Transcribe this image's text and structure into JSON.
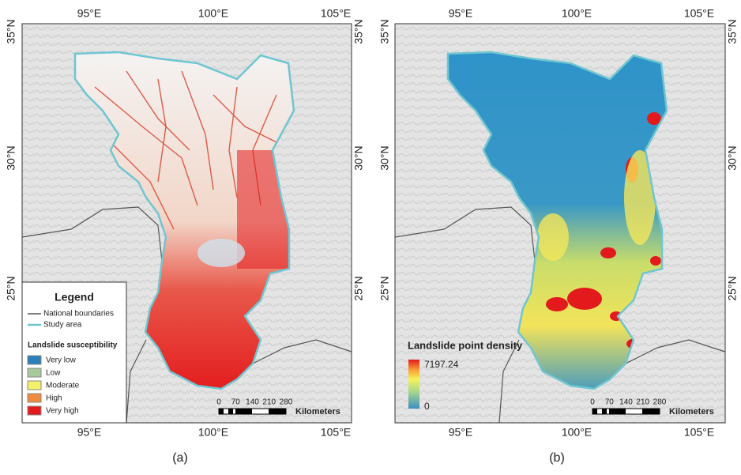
{
  "panels": [
    {
      "caption": "(a)",
      "lon_labels": [
        "95°E",
        "100°E",
        "105°E"
      ],
      "lat_labels": [
        "35°N",
        "30°N",
        "25°N"
      ],
      "legend": {
        "title": "Legend",
        "lines": [
          "National boundaries",
          "Study area"
        ],
        "subtitle": "Landslide susceptibility",
        "classes": [
          {
            "label": "Very low",
            "color": "#2c7fb8"
          },
          {
            "label": "Low",
            "color": "#a6c99b"
          },
          {
            "label": "Moderate",
            "color": "#f5f06a"
          },
          {
            "label": "High",
            "color": "#f08a3c"
          },
          {
            "label": "Very high",
            "color": "#e31a1c"
          }
        ]
      },
      "scale_bar": {
        "ticks": [
          "0",
          "70",
          "140",
          "210",
          "280"
        ],
        "unit": "Kilometers"
      }
    },
    {
      "caption": "(b)",
      "lon_labels": [
        "95°E",
        "100°E",
        "105°E"
      ],
      "lat_labels": [
        "35°N",
        "30°N",
        "25°N"
      ],
      "legend": {
        "title": "Landslide point density",
        "max_label": "7197.24",
        "min_label": "0"
      },
      "scale_bar": {
        "ticks": [
          "0",
          "70",
          "140",
          "210",
          "280"
        ],
        "unit": "Kilometers"
      }
    }
  ]
}
